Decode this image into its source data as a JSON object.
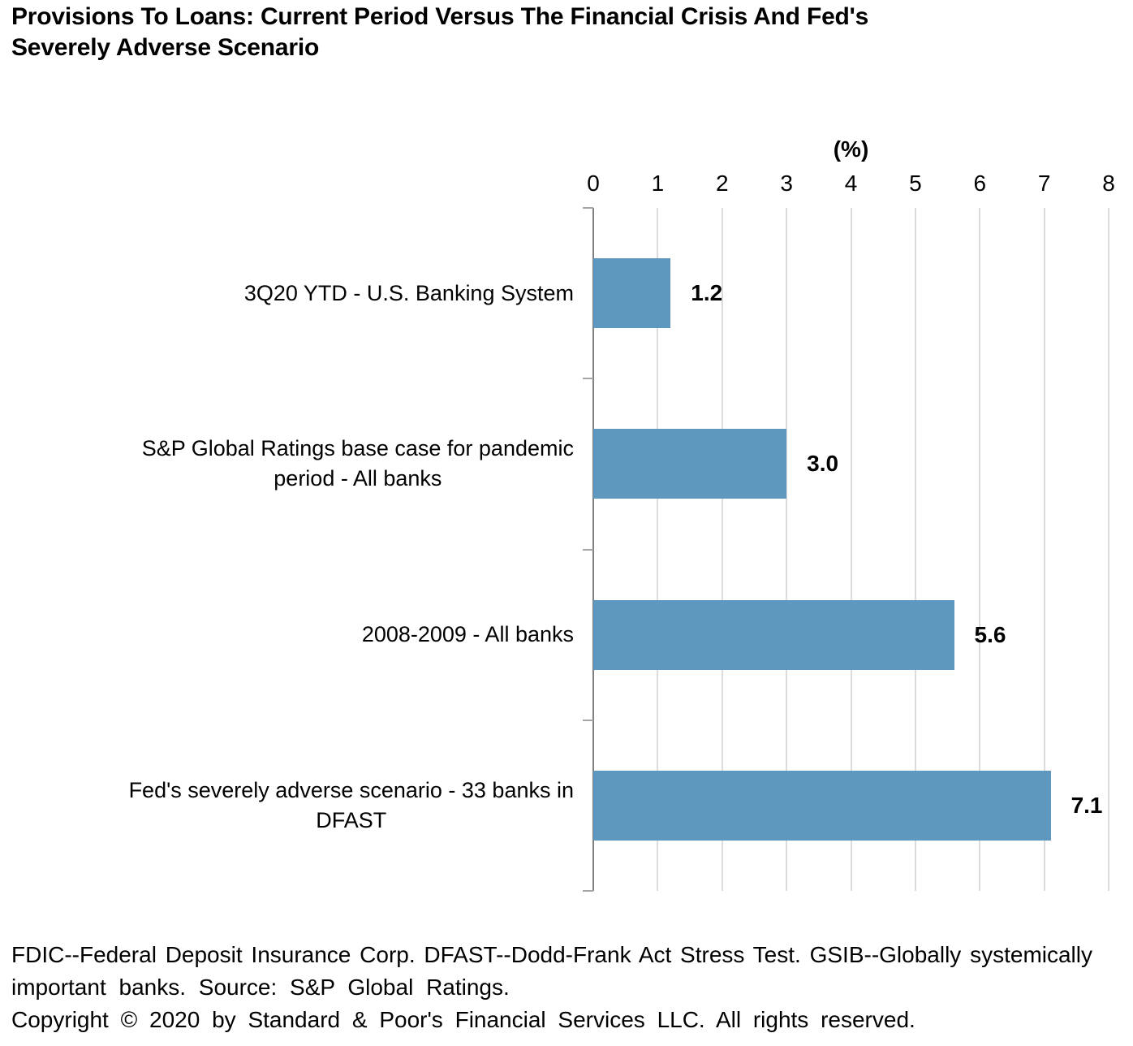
{
  "title": "Provisions To Loans: Current Period Versus The Financial Crisis And Fed's\nSeverely Adverse Scenario",
  "chart_data": {
    "type": "bar",
    "orientation": "horizontal",
    "unit_label": "(%)",
    "x_ticks": [
      "0",
      "1",
      "2",
      "3",
      "4",
      "5",
      "6",
      "7",
      "8"
    ],
    "xlim": [
      0,
      8
    ],
    "gridlines": true,
    "legend": "none",
    "bar_color": "#5e98be",
    "categories": [
      "3Q20 YTD - U.S. Banking System",
      "S&P Global Ratings base case for pandemic\nperiod - All banks",
      "2008-2009 - All banks",
      "Fed's severely adverse scenario - 33 banks in\nDFAST"
    ],
    "values": [
      1.2,
      3.0,
      5.6,
      7.1
    ],
    "value_labels": [
      "1.2",
      "3.0",
      "5.6",
      "7.1"
    ]
  },
  "footer": {
    "footnote_lines": [
      "FDIC--Federal Deposit Insurance Corp. DFAST--Dodd-Frank Act Stress Test. GSIB--Globally systemically",
      "important banks. Source: S&P Global Ratings."
    ],
    "copyright": "Copyright © 2020 by Standard & Poor's Financial Services LLC. All rights reserved."
  }
}
